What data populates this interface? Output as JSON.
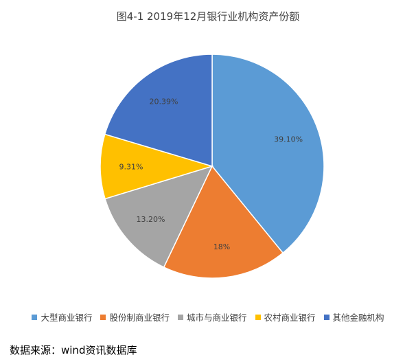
{
  "chart_data": {
    "type": "pie",
    "title": "图4-1 2019年12月银行业机构资产份额",
    "slices": [
      {
        "name": "大型商业银行",
        "value": 39.1,
        "label": "39.10%",
        "color": "#5B9BD5"
      },
      {
        "name": "股份制商业银行",
        "value": 18.0,
        "label": "18%",
        "color": "#ED7D31"
      },
      {
        "name": "城市与商业银行",
        "value": 13.2,
        "label": "13.20%",
        "color": "#A5A5A5"
      },
      {
        "name": "农村商业银行",
        "value": 9.31,
        "label": "9.31%",
        "color": "#FFC000"
      },
      {
        "name": "其他金融机构",
        "value": 20.39,
        "label": "20.39%",
        "color": "#4472C4"
      }
    ],
    "legend_position": "bottom"
  },
  "source_note": "数据来源：wind资讯数据库"
}
